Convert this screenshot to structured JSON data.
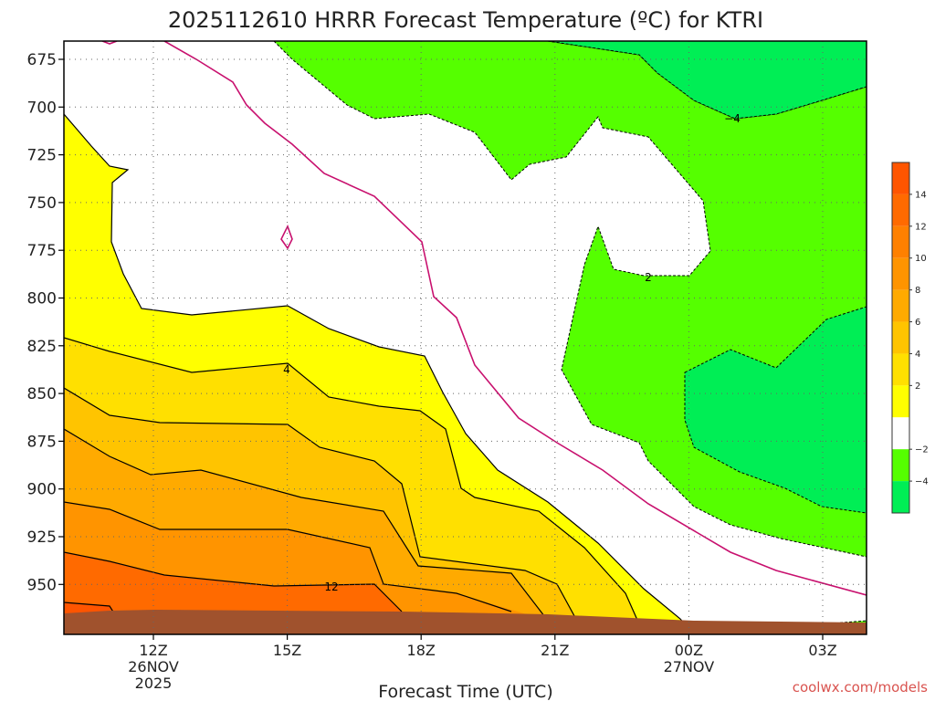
{
  "chart_data": {
    "type": "contour",
    "title": "2025112610 HRRR Forecast Temperature (ºC) for KTRI",
    "xlabel": "Forecast Time (UTC)",
    "x_ticks": [
      {
        "label": "12Z",
        "sub": [
          "26NOV",
          "2025"
        ]
      },
      {
        "label": "15Z",
        "sub": []
      },
      {
        "label": "18Z",
        "sub": []
      },
      {
        "label": "21Z",
        "sub": []
      },
      {
        "label": "00Z",
        "sub": [
          "27NOV"
        ]
      },
      {
        "label": "03Z",
        "sub": []
      }
    ],
    "y_ticks": [
      "675",
      "700",
      "725",
      "750",
      "775",
      "800",
      "825",
      "850",
      "875",
      "900",
      "925",
      "950"
    ],
    "y_axis": "pressure (hPa), inverted",
    "grid": "dotted",
    "colorbar": {
      "position": "right",
      "bins": [
        {
          "color": "#ff5500",
          "tick": "14"
        },
        {
          "color": "#ff6a00",
          "tick": "12"
        },
        {
          "color": "#ff8000",
          "tick": "10"
        },
        {
          "color": "#ff9400",
          "tick": "8"
        },
        {
          "color": "#ffaa00",
          "tick": "6"
        },
        {
          "color": "#ffc400",
          "tick": "4"
        },
        {
          "color": "#ffe000",
          "tick": "2"
        },
        {
          "color": "#ffff00",
          "tick": ""
        },
        {
          "color": "#ffffff",
          "tick": "−2"
        },
        {
          "color": "#55ff00",
          "tick": "−4"
        },
        {
          "color": "#00ee55",
          "tick": ""
        }
      ]
    },
    "contour_labels": [
      "−4",
      "2",
      "4",
      "12"
    ],
    "zero_line_color": "#c8106e",
    "terrain_color": "#a0522d",
    "credit": "coolwx.com/models"
  }
}
